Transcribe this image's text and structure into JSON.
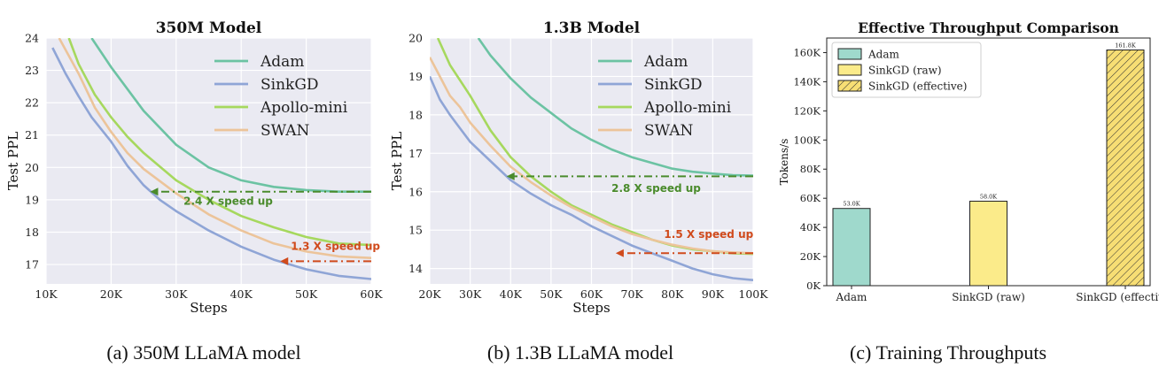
{
  "captions": [
    "(a) 350M LLaMA model",
    "(b) 1.3B LLaMA model",
    "(c) Training Throughputs"
  ],
  "chart_data": [
    {
      "type": "line",
      "title": "350M Model",
      "xlabel": "Steps",
      "ylabel": "Test PPL",
      "xlim": [
        10000,
        60000
      ],
      "ylim": [
        16.4,
        24
      ],
      "x_ticks": [
        10000,
        20000,
        30000,
        40000,
        50000,
        60000
      ],
      "x_tick_labels": [
        "10K",
        "20K",
        "30K",
        "40K",
        "50K",
        "60K"
      ],
      "y_ticks": [
        17,
        18,
        19,
        20,
        21,
        22,
        23,
        24
      ],
      "y_tick_labels": [
        "17",
        "18",
        "19",
        "20",
        "21",
        "22",
        "23",
        "24"
      ],
      "legend_position": "top-right",
      "series": [
        {
          "name": "Adam",
          "color": "#6cc3a3",
          "x": [
            17000,
            20000,
            25000,
            30000,
            35000,
            40000,
            45000,
            50000,
            55000,
            60000
          ],
          "y": [
            24.0,
            23.1,
            21.75,
            20.7,
            20.0,
            19.6,
            19.4,
            19.3,
            19.25,
            19.25
          ]
        },
        {
          "name": "SinkGD",
          "color": "#8fa5d6",
          "x": [
            11000,
            13000,
            15000,
            17000,
            20000,
            22500,
            25000,
            27500,
            30000,
            35000,
            40000,
            45000,
            50000,
            55000,
            60000
          ],
          "y": [
            23.7,
            22.9,
            22.2,
            21.55,
            20.8,
            20.05,
            19.45,
            19.0,
            18.65,
            18.05,
            17.55,
            17.15,
            16.85,
            16.65,
            16.55
          ]
        },
        {
          "name": "Apollo-mini",
          "color": "#a6d85e",
          "x": [
            13500,
            15000,
            17500,
            20000,
            22500,
            25000,
            30000,
            35000,
            40000,
            45000,
            50000,
            55000,
            60000
          ],
          "y": [
            24.0,
            23.2,
            22.25,
            21.55,
            20.95,
            20.45,
            19.6,
            19.0,
            18.5,
            18.15,
            17.85,
            17.65,
            17.6
          ]
        },
        {
          "name": "SWAN",
          "color": "#ecc49a",
          "x": [
            12000,
            15000,
            17500,
            20000,
            22500,
            25000,
            30000,
            35000,
            40000,
            45000,
            50000,
            55000,
            60000
          ],
          "y": [
            24.0,
            22.9,
            21.85,
            21.1,
            20.45,
            19.95,
            19.2,
            18.55,
            18.05,
            17.65,
            17.4,
            17.25,
            17.2
          ]
        }
      ],
      "annotations": [
        {
          "text": "2.4 X speed up",
          "x_from": 60000,
          "x_to": 26000,
          "y_arrow": 19.25,
          "x_text": 38000,
          "y_text": 18.85,
          "color": "#4a8b2c"
        },
        {
          "text": "1.3 X speed up",
          "x_from": 60000,
          "x_to": 46000,
          "y_arrow": 17.1,
          "x_text": 54500,
          "y_text": 17.45,
          "color": "#d04a1c"
        }
      ]
    },
    {
      "type": "line",
      "title": "1.3B Model",
      "xlabel": "Steps",
      "ylabel": "Test PPL",
      "xlim": [
        20000,
        100000
      ],
      "ylim": [
        13.6,
        20
      ],
      "x_ticks": [
        20000,
        30000,
        40000,
        50000,
        60000,
        70000,
        80000,
        90000,
        100000
      ],
      "x_tick_labels": [
        "20K",
        "30K",
        "40K",
        "50K",
        "60K",
        "70K",
        "80K",
        "90K",
        "100K"
      ],
      "y_ticks": [
        14,
        15,
        16,
        17,
        18,
        19,
        20
      ],
      "y_tick_labels": [
        "14",
        "15",
        "16",
        "17",
        "18",
        "19",
        "20"
      ],
      "legend_position": "top-right",
      "series": [
        {
          "name": "Adam",
          "color": "#6cc3a3",
          "x": [
            32000,
            35000,
            40000,
            45000,
            50000,
            55000,
            60000,
            65000,
            70000,
            75000,
            80000,
            85000,
            90000,
            95000,
            100000
          ],
          "y": [
            20.0,
            19.55,
            18.95,
            18.45,
            18.05,
            17.65,
            17.35,
            17.1,
            16.9,
            16.75,
            16.6,
            16.52,
            16.47,
            16.43,
            16.42
          ]
        },
        {
          "name": "SinkGD",
          "color": "#8fa5d6",
          "x": [
            20000,
            22500,
            25000,
            27500,
            30000,
            35000,
            40000,
            45000,
            50000,
            55000,
            60000,
            65000,
            70000,
            75000,
            80000,
            85000,
            90000,
            95000,
            100000
          ],
          "y": [
            19.0,
            18.4,
            18.0,
            17.65,
            17.3,
            16.8,
            16.3,
            15.95,
            15.65,
            15.4,
            15.1,
            14.85,
            14.6,
            14.4,
            14.2,
            14.0,
            13.85,
            13.75,
            13.7
          ]
        },
        {
          "name": "Apollo-mini",
          "color": "#a6d85e",
          "x": [
            22000,
            25000,
            27500,
            30000,
            35000,
            40000,
            45000,
            50000,
            55000,
            60000,
            65000,
            70000,
            75000,
            80000,
            85000,
            90000,
            95000,
            100000
          ],
          "y": [
            20.0,
            19.3,
            18.9,
            18.5,
            17.6,
            16.9,
            16.4,
            16.0,
            15.65,
            15.4,
            15.15,
            14.95,
            14.75,
            14.6,
            14.5,
            14.45,
            14.4,
            14.38
          ]
        },
        {
          "name": "SWAN",
          "color": "#ecc49a",
          "x": [
            20000,
            22500,
            25000,
            27500,
            30000,
            35000,
            40000,
            45000,
            50000,
            55000,
            60000,
            65000,
            70000,
            75000,
            80000,
            85000,
            90000,
            95000,
            100000
          ],
          "y": [
            19.5,
            19.0,
            18.5,
            18.2,
            17.8,
            17.2,
            16.65,
            16.25,
            15.9,
            15.6,
            15.35,
            15.1,
            14.9,
            14.75,
            14.62,
            14.52,
            14.45,
            14.42,
            14.4
          ]
        }
      ],
      "annotations": [
        {
          "text": "2.8 X speed up",
          "x_from": 100000,
          "x_to": 39000,
          "y_arrow": 16.4,
          "x_text": 76000,
          "y_text": 16.0,
          "color": "#4a8b2c"
        },
        {
          "text": "1.5 X speed up",
          "x_from": 100000,
          "x_to": 66000,
          "y_arrow": 14.4,
          "x_text": 89000,
          "y_text": 14.8,
          "color": "#d04a1c"
        }
      ]
    },
    {
      "type": "bar",
      "title": "Effective Throughput Comparison",
      "xlabel": "",
      "ylabel": "Tokens/s",
      "ylim": [
        0,
        170000
      ],
      "y_ticks": [
        0,
        20000,
        40000,
        60000,
        80000,
        100000,
        120000,
        140000,
        160000
      ],
      "y_tick_labels": [
        "0K",
        "20K",
        "40K",
        "60K",
        "80K",
        "100K",
        "120K",
        "140K",
        "160K"
      ],
      "categories": [
        "Adam",
        "SinkGD (raw)",
        "SinkGD (effective)"
      ],
      "values": [
        53000,
        58000,
        161800
      ],
      "value_labels": [
        "53.0K",
        "58.0K",
        "161.8K"
      ],
      "colors": [
        "#9fd9cc",
        "#fbeb8a",
        "#f7de74"
      ],
      "hatched": [
        false,
        false,
        true
      ],
      "legend_position": "top-left",
      "legend": [
        "Adam",
        "SinkGD (raw)",
        "SinkGD (effective)"
      ]
    }
  ]
}
